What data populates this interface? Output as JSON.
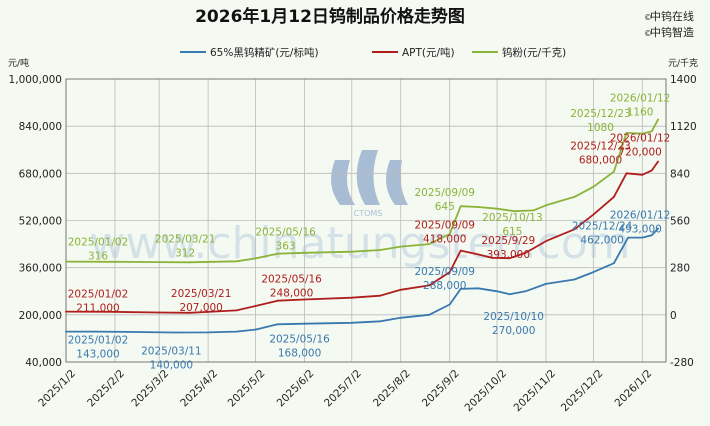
{
  "chart_data": {
    "type": "line",
    "title": "2026年1月12日钨制品价格走势图",
    "left_unit": "元/吨",
    "right_unit": "元/千克",
    "brand": [
      "中钨在线",
      "中钨智造"
    ],
    "watermark": "www.chinatungsten.com",
    "watermark_logo": "CTOMS",
    "x_tick_labels": [
      "2025/1/2",
      "2025/2/2",
      "2025/3/2",
      "2025/4/2",
      "2025/5/2",
      "2025/6/2",
      "2025/7/2",
      "2025/8/2",
      "2025/9/2",
      "2025/10/2",
      "2025/11/2",
      "2025/12/2",
      "2026/1/2"
    ],
    "y_left": {
      "min": 40000,
      "max": 1000000,
      "ticks": [
        40000,
        200000,
        360000,
        520000,
        680000,
        840000,
        1000000
      ],
      "tick_labels": [
        "40,000",
        "200,000",
        "360,000",
        "520,000",
        "680,000",
        "840,000",
        "1,000,000"
      ]
    },
    "y_right": {
      "min": -280,
      "max": 1400,
      "ticks": [
        -280,
        0,
        280,
        560,
        840,
        1120,
        1400
      ],
      "tick_labels": [
        "-280",
        "0",
        "280",
        "560",
        "840",
        "1120",
        "1400"
      ]
    },
    "grid": true,
    "legend_position": "top",
    "colors": {
      "ore": "#3a78b0",
      "apt": "#b01d1d",
      "powder": "#8bb33a",
      "background": "#f4faf1"
    },
    "series": [
      {
        "key": "ore",
        "name": "65%黑钨精矿(元/标吨)",
        "axis": "left",
        "points": [
          [
            "2025/1/2",
            143000
          ],
          [
            "2025/1/20",
            143000
          ],
          [
            "2025/2/10",
            142000
          ],
          [
            "2025/3/11",
            140000
          ],
          [
            "2025/4/2",
            140500
          ],
          [
            "2025/4/20",
            143000
          ],
          [
            "2025/5/2",
            150000
          ],
          [
            "2025/5/16",
            168000
          ],
          [
            "2025/6/2",
            170000
          ],
          [
            "2025/7/2",
            173000
          ],
          [
            "2025/7/20",
            178000
          ],
          [
            "2025/8/2",
            190000
          ],
          [
            "2025/8/20",
            200000
          ],
          [
            "2025/9/2",
            235000
          ],
          [
            "2025/9/9",
            288000
          ],
          [
            "2025/9/20",
            290000
          ],
          [
            "2025/10/2",
            280000
          ],
          [
            "2025/10/10",
            270000
          ],
          [
            "2025/10/20",
            280000
          ],
          [
            "2025/11/2",
            305000
          ],
          [
            "2025/11/20",
            320000
          ],
          [
            "2025/12/2",
            345000
          ],
          [
            "2025/12/15",
            375000
          ],
          [
            "2025/12/24",
            462000
          ],
          [
            "2026/1/2",
            462000
          ],
          [
            "2026/1/8",
            470000
          ],
          [
            "2026/1/12",
            493000
          ]
        ],
        "annotations": [
          {
            "date": "2025/01/02",
            "value": "143,000"
          },
          {
            "date": "2025/03/11",
            "value": "140,000"
          },
          {
            "date": "2025/05/16",
            "value": "168,000"
          },
          {
            "date": "2025/09/09",
            "value": "288,000"
          },
          {
            "date": "2025/10/10",
            "value": "270,000"
          },
          {
            "date": "2025/12/24",
            "value": "462,000"
          },
          {
            "date": "2026/01/12",
            "value": "493,000"
          }
        ]
      },
      {
        "key": "apt",
        "name": "APT(元/吨)",
        "axis": "left",
        "points": [
          [
            "2025/1/2",
            211000
          ],
          [
            "2025/2/2",
            210000
          ],
          [
            "2025/3/2",
            208000
          ],
          [
            "2025/3/21",
            207000
          ],
          [
            "2025/4/2",
            210000
          ],
          [
            "2025/4/20",
            215000
          ],
          [
            "2025/5/2",
            230000
          ],
          [
            "2025/5/16",
            248000
          ],
          [
            "2025/6/2",
            252000
          ],
          [
            "2025/7/2",
            258000
          ],
          [
            "2025/7/20",
            265000
          ],
          [
            "2025/8/2",
            285000
          ],
          [
            "2025/8/20",
            300000
          ],
          [
            "2025/9/2",
            345000
          ],
          [
            "2025/9/9",
            418000
          ],
          [
            "2025/9/20",
            405000
          ],
          [
            "2025/9/29",
            393000
          ],
          [
            "2025/10/10",
            392000
          ],
          [
            "2025/10/20",
            410000
          ],
          [
            "2025/11/2",
            450000
          ],
          [
            "2025/11/20",
            490000
          ],
          [
            "2025/12/2",
            540000
          ],
          [
            "2025/12/15",
            600000
          ],
          [
            "2025/12/23",
            680000
          ],
          [
            "2026/1/2",
            675000
          ],
          [
            "2026/1/8",
            690000
          ],
          [
            "2026/1/12",
            720000
          ]
        ],
        "annotations": [
          {
            "date": "2025/01/02",
            "value": "211,000"
          },
          {
            "date": "2025/03/21",
            "value": "207,000"
          },
          {
            "date": "2025/05/16",
            "value": "248,000"
          },
          {
            "date": "2025/09/09",
            "value": "418,000"
          },
          {
            "date": "2025/9/29",
            "value": "393,000"
          },
          {
            "date": "2025/12/23",
            "value": "680,000"
          },
          {
            "date": "2026/01/12",
            "value": "720,000"
          }
        ]
      },
      {
        "key": "powder",
        "name": "钨粉(元/千克)",
        "axis": "right",
        "points": [
          [
            "2025/1/2",
            316
          ],
          [
            "2025/2/2",
            315
          ],
          [
            "2025/3/2",
            313
          ],
          [
            "2025/3/21",
            312
          ],
          [
            "2025/4/20",
            318
          ],
          [
            "2025/5/2",
            335
          ],
          [
            "2025/5/16",
            363
          ],
          [
            "2025/6/2",
            368
          ],
          [
            "2025/7/2",
            375
          ],
          [
            "2025/7/20",
            385
          ],
          [
            "2025/8/2",
            405
          ],
          [
            "2025/8/20",
            420
          ],
          [
            "2025/9/2",
            480
          ],
          [
            "2025/9/9",
            645
          ],
          [
            "2025/9/20",
            640
          ],
          [
            "2025/10/2",
            630
          ],
          [
            "2025/10/13",
            615
          ],
          [
            "2025/10/25",
            620
          ],
          [
            "2025/11/2",
            650
          ],
          [
            "2025/11/20",
            700
          ],
          [
            "2025/12/2",
            760
          ],
          [
            "2025/12/15",
            850
          ],
          [
            "2025/12/23",
            1080
          ],
          [
            "2026/1/2",
            1075
          ],
          [
            "2026/1/8",
            1090
          ],
          [
            "2026/1/12",
            1160
          ]
        ],
        "annotations": [
          {
            "date": "2025/01/02",
            "value": "316"
          },
          {
            "date": "2025/03/21",
            "value": "312"
          },
          {
            "date": "2025/05/16",
            "value": "363"
          },
          {
            "date": "2025/09/09",
            "value": "645"
          },
          {
            "date": "2025/10/13",
            "value": "615"
          },
          {
            "date": "2025/12/23",
            "value": "1080"
          },
          {
            "date": "2026/01/12",
            "value": "1160"
          }
        ]
      }
    ]
  }
}
